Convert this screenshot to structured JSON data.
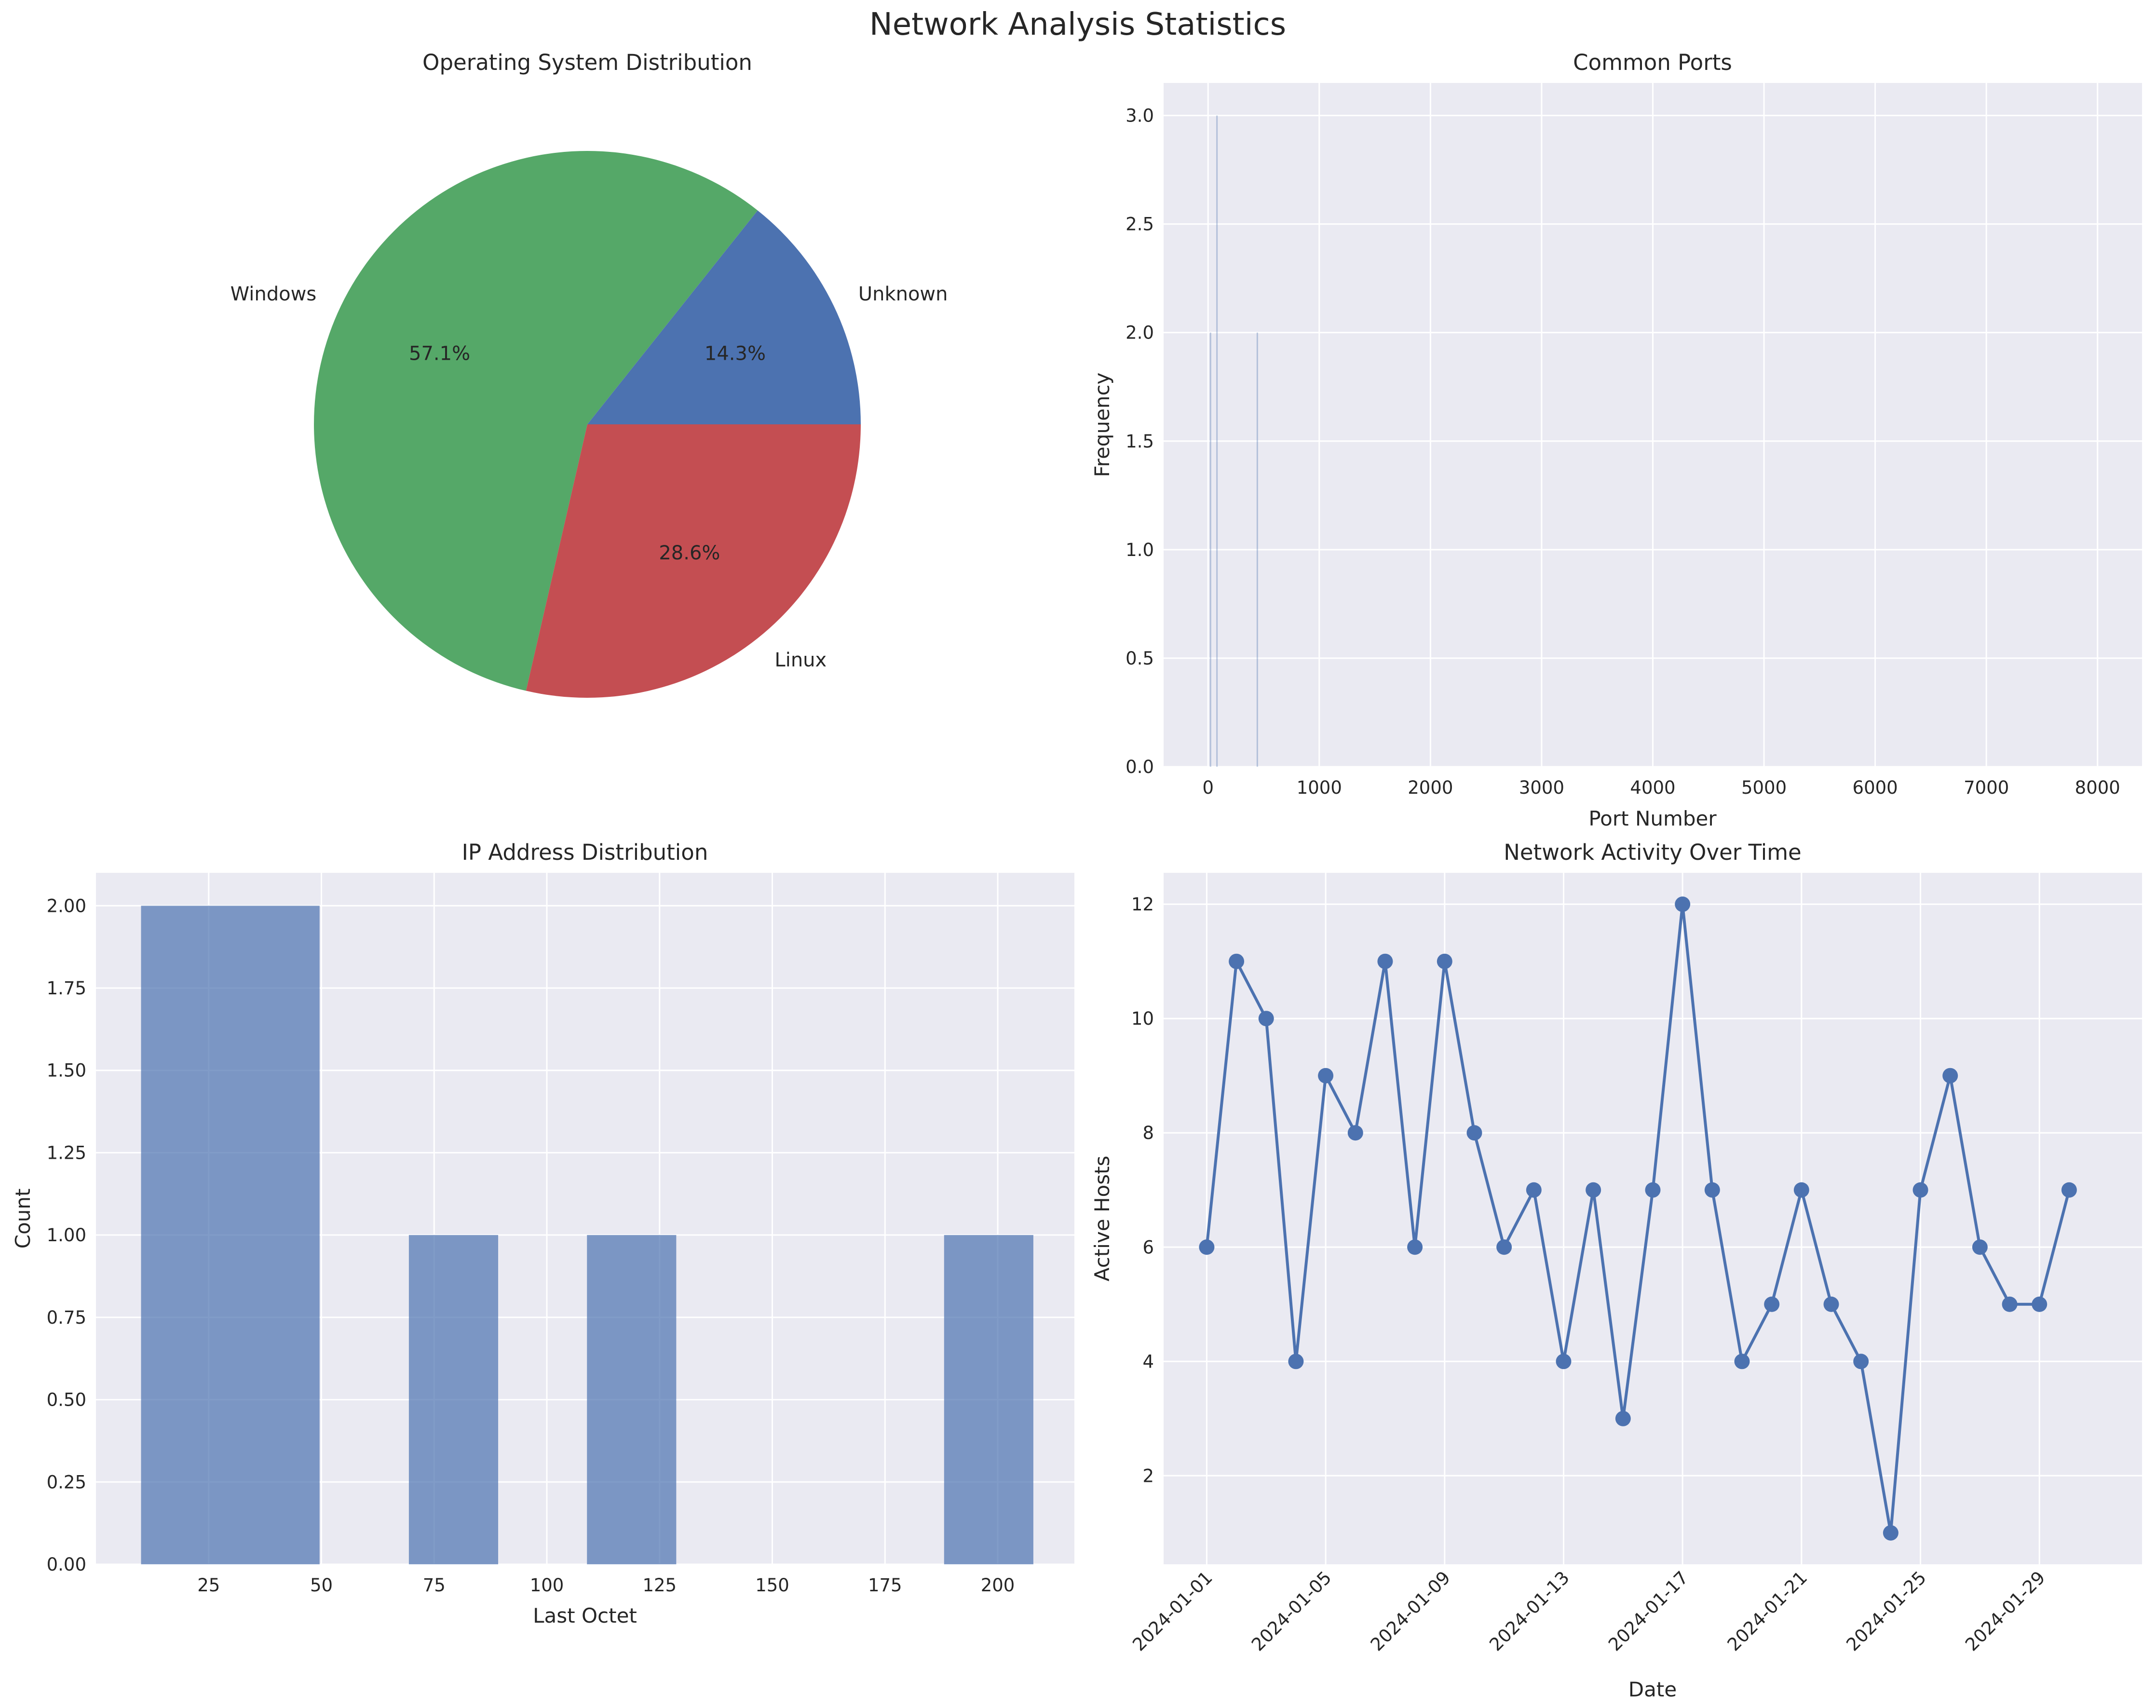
{
  "figure": {
    "title": "Network Analysis Statistics"
  },
  "chart_data": [
    {
      "type": "pie",
      "title": "Operating System Distribution",
      "labels": [
        "Unknown",
        "Windows",
        "Linux"
      ],
      "values": [
        14.3,
        57.1,
        28.6
      ],
      "percent_labels": [
        "14.3%",
        "57.1%",
        "28.6%"
      ],
      "colors": [
        "#4c72b0",
        "#55a868",
        "#c44e52"
      ]
    },
    {
      "type": "bar",
      "title": "Common Ports",
      "xlabel": "Port Number",
      "ylabel": "Frequency",
      "xlim": [
        -400,
        8400
      ],
      "ylim": [
        0,
        3.15
      ],
      "xticks": [
        0,
        1000,
        2000,
        3000,
        4000,
        5000,
        6000,
        7000,
        8000
      ],
      "xtick_labels": [
        "0",
        "1000",
        "2000",
        "3000",
        "4000",
        "5000",
        "6000",
        "7000",
        "8000"
      ],
      "yticks": [
        0,
        0.5,
        1,
        1.5,
        2,
        2.5,
        3
      ],
      "ytick_labels": [
        "0.0",
        "0.5",
        "1.0",
        "1.5",
        "2.0",
        "2.5",
        "3.0"
      ],
      "bars": [
        {
          "x": 22,
          "value": 2
        },
        {
          "x": 80,
          "value": 3
        },
        {
          "x": 443,
          "value": 2
        }
      ],
      "color": "#4c72b0"
    },
    {
      "type": "bar",
      "title": "IP Address Distribution",
      "xlabel": "Last Octet",
      "ylabel": "Count",
      "xlim": [
        0,
        217
      ],
      "ylim": [
        0,
        2.1
      ],
      "xticks": [
        25,
        50,
        75,
        100,
        125,
        150,
        175,
        200
      ],
      "xtick_labels": [
        "25",
        "50",
        "75",
        "100",
        "125",
        "150",
        "175",
        "200"
      ],
      "yticks": [
        0,
        0.25,
        0.5,
        0.75,
        1,
        1.25,
        1.5,
        1.75,
        2
      ],
      "ytick_labels": [
        "0.00",
        "0.25",
        "0.50",
        "0.75",
        "1.00",
        "1.25",
        "1.50",
        "1.75",
        "2.00"
      ],
      "bins": [
        {
          "start": 10,
          "end": 49.6,
          "value": 2
        },
        {
          "start": 69.4,
          "end": 89.2,
          "value": 1
        },
        {
          "start": 108.9,
          "end": 128.7,
          "value": 1
        },
        {
          "start": 188.1,
          "end": 207.9,
          "value": 1
        }
      ],
      "color": "#4c72b0"
    },
    {
      "type": "line",
      "title": "Network Activity Over Time",
      "xlabel": "Date",
      "ylabel": "Active Hosts",
      "xlim": [
        -1.45,
        31.45
      ],
      "ylim": [
        0.45,
        12.55
      ],
      "x": [
        "2024-01-01",
        "2024-01-02",
        "2024-01-03",
        "2024-01-04",
        "2024-01-05",
        "2024-01-06",
        "2024-01-07",
        "2024-01-08",
        "2024-01-09",
        "2024-01-10",
        "2024-01-11",
        "2024-01-12",
        "2024-01-13",
        "2024-01-14",
        "2024-01-15",
        "2024-01-16",
        "2024-01-17",
        "2024-01-18",
        "2024-01-19",
        "2024-01-20",
        "2024-01-21",
        "2024-01-22",
        "2024-01-23",
        "2024-01-24",
        "2024-01-25",
        "2024-01-26",
        "2024-01-27",
        "2024-01-28",
        "2024-01-29",
        "2024-01-30"
      ],
      "values": [
        6,
        11,
        10,
        4,
        9,
        8,
        11,
        6,
        11,
        8,
        6,
        7,
        4,
        7,
        3,
        7,
        12,
        7,
        4,
        5,
        7,
        5,
        4,
        1,
        7,
        9,
        6,
        5,
        5,
        7
      ],
      "xticks": [
        0,
        4,
        8,
        12,
        16,
        20,
        24,
        28
      ],
      "xtick_labels": [
        "2024-01-01",
        "2024-01-05",
        "2024-01-09",
        "2024-01-13",
        "2024-01-17",
        "2024-01-21",
        "2024-01-25",
        "2024-01-29"
      ],
      "yticks": [
        2,
        4,
        6,
        8,
        10,
        12
      ],
      "ytick_labels": [
        "2",
        "4",
        "6",
        "8",
        "10",
        "12"
      ],
      "color": "#4c72b0"
    }
  ]
}
